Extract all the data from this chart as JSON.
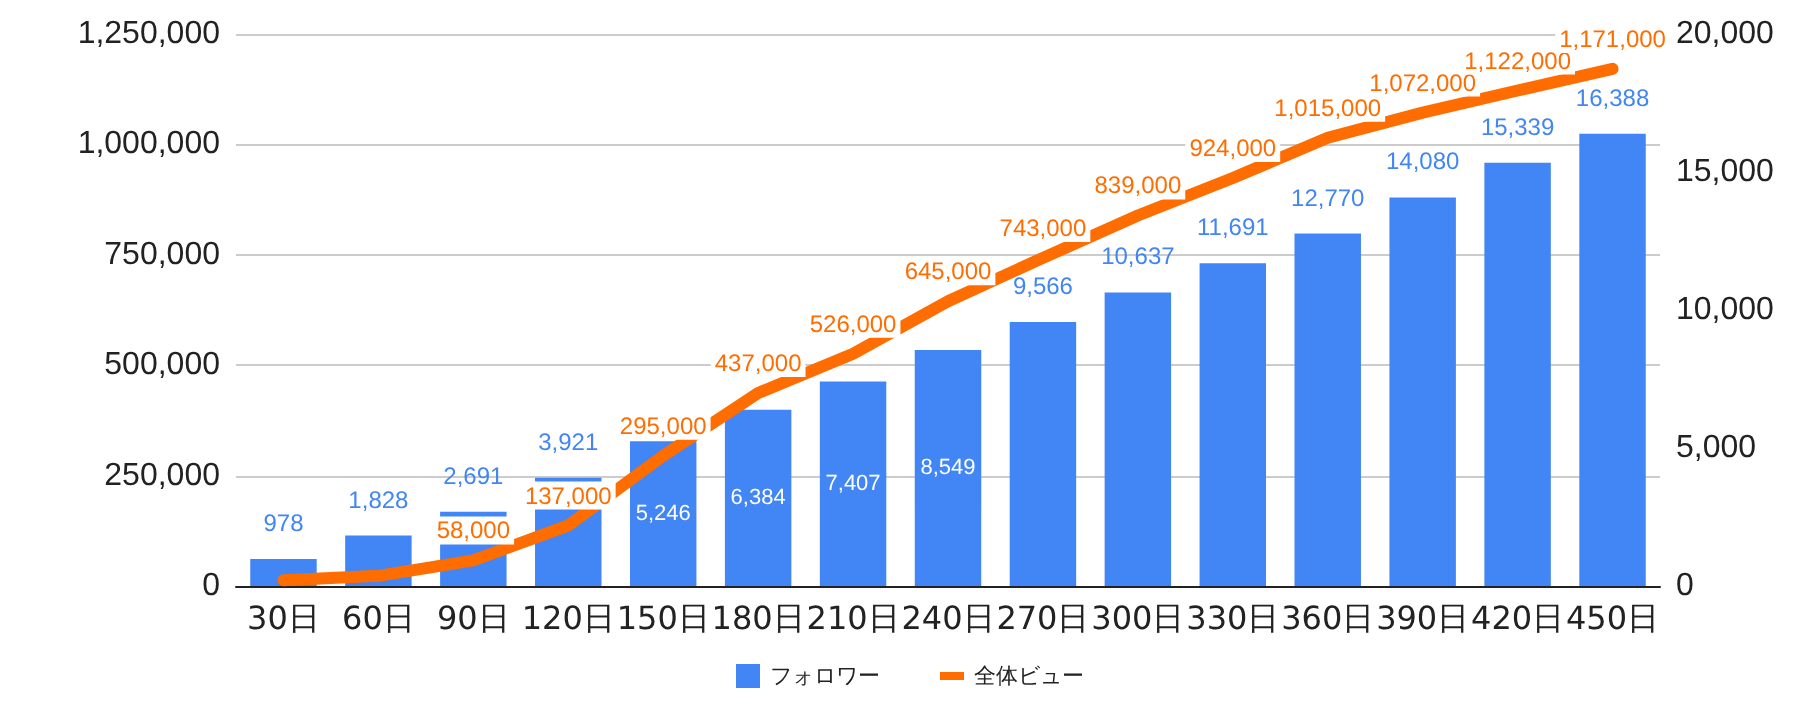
{
  "chart_data": {
    "type": "bar",
    "categories": [
      "30日",
      "60日",
      "90日",
      "120日",
      "150日",
      "180日",
      "210日",
      "240日",
      "270日",
      "300日",
      "330日",
      "360日",
      "390日",
      "420日",
      "450日"
    ],
    "series": [
      {
        "name": "フォロワー",
        "axis": "y2",
        "color": "#4285f4",
        "values": [
          978,
          1828,
          2691,
          3921,
          5246,
          6384,
          7407,
          8549,
          9566,
          10637,
          11691,
          12770,
          14080,
          15339,
          16388
        ],
        "value_labels": [
          "978",
          "1,828",
          "2,691",
          "3,921",
          "5,246",
          "6,384",
          "7,407",
          "8,549",
          "9,566",
          "10,637",
          "11,691",
          "12,770",
          "14,080",
          "15,339",
          "16,388"
        ]
      },
      {
        "name": "全体ビュー",
        "type": "line",
        "color": "#ff6d01",
        "values": [
          13000,
          23000,
          58000,
          137000,
          295000,
          437000,
          526000,
          645000,
          743000,
          839000,
          924000,
          1015000,
          1072000,
          1122000,
          1171000
        ],
        "value_labels": [
          null,
          null,
          "58,000",
          "137,000",
          "295,000",
          "437,000",
          "526,000",
          "645,000",
          "743,000",
          "839,000",
          "924,000",
          "1,015,000",
          "1,072,000",
          "1,122,000",
          "1,171,000"
        ]
      }
    ],
    "ylim": [
      0,
      1250000
    ],
    "yticks": [
      {
        "value": 0,
        "label": "0"
      },
      {
        "value": 250000,
        "label": "250,000"
      },
      {
        "value": 500000,
        "label": "500,000"
      },
      {
        "value": 750000,
        "label": "750,000"
      },
      {
        "value": 1000000,
        "label": "1,000,000"
      },
      {
        "value": 1250000,
        "label": "1,250,000"
      }
    ],
    "y2lim": [
      0,
      20000
    ],
    "y2ticks": [
      {
        "value": 0,
        "label": "0"
      },
      {
        "value": 5000,
        "label": "5,000"
      },
      {
        "value": 10000,
        "label": "10,000"
      },
      {
        "value": 15000,
        "label": "15,000"
      },
      {
        "value": 20000,
        "label": "20,000"
      }
    ],
    "grid": "y",
    "legend": "bottom",
    "marker": "none",
    "line_style": "solid"
  }
}
